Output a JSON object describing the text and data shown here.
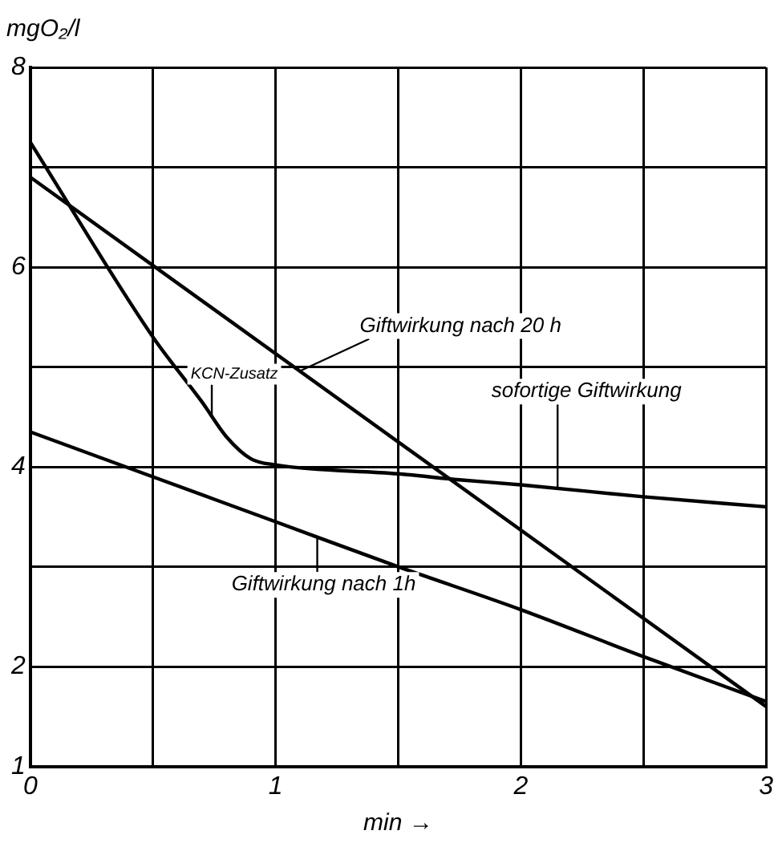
{
  "chart_data": {
    "type": "line",
    "ylabel": "mgO₂/l",
    "xlabel": "min →",
    "xlim": [
      0,
      3
    ],
    "xticks": [
      0,
      {
        "value": 0.5,
        "label": null
      },
      1,
      {
        "value": 1.5,
        "label": null
      },
      2,
      {
        "value": 2.5,
        "label": null
      },
      3
    ],
    "ylim": [
      1,
      8
    ],
    "yticks": [
      1,
      2,
      {
        "value": 3,
        "label": null
      },
      4,
      {
        "value": 5,
        "label": null
      },
      6,
      {
        "value": 7,
        "label": null
      },
      8
    ],
    "grid": true,
    "legend": false,
    "marker": "none",
    "line_style": "solid",
    "series": [
      {
        "color": "#000000",
        "x": [
          0,
          0.5,
          0.7,
          0.8,
          0.9,
          1,
          1.5,
          1.75,
          2,
          2.5,
          3
        ],
        "values": [
          7.25,
          5.3,
          4.65,
          4.3,
          4.08,
          4.02,
          3.93,
          3.87,
          3.82,
          3.7,
          3.6
        ]
      },
      {
        "color": "#000000",
        "x": [
          0,
          3
        ],
        "values": [
          6.9,
          1.6
        ]
      },
      {
        "color": "#000000",
        "x": [
          0,
          0.5,
          1,
          1.5,
          2,
          2.5,
          3
        ],
        "values": [
          4.35,
          3.9,
          3.45,
          3.0,
          2.57,
          2.1,
          1.65
        ]
      }
    ],
    "annotations": [
      {
        "text": "KCN-Zusatz",
        "x": 0.74,
        "y": 4.51
      },
      {
        "text": "Giftwirkung nach 20 h",
        "x": 1.1,
        "y": 4.96
      },
      {
        "text": "sofortige Giftwirkung",
        "x": 2.15,
        "y": 3.79
      },
      {
        "text": "Giftwirkung nach 1h",
        "x": 1.17,
        "y": 3.3
      }
    ]
  }
}
